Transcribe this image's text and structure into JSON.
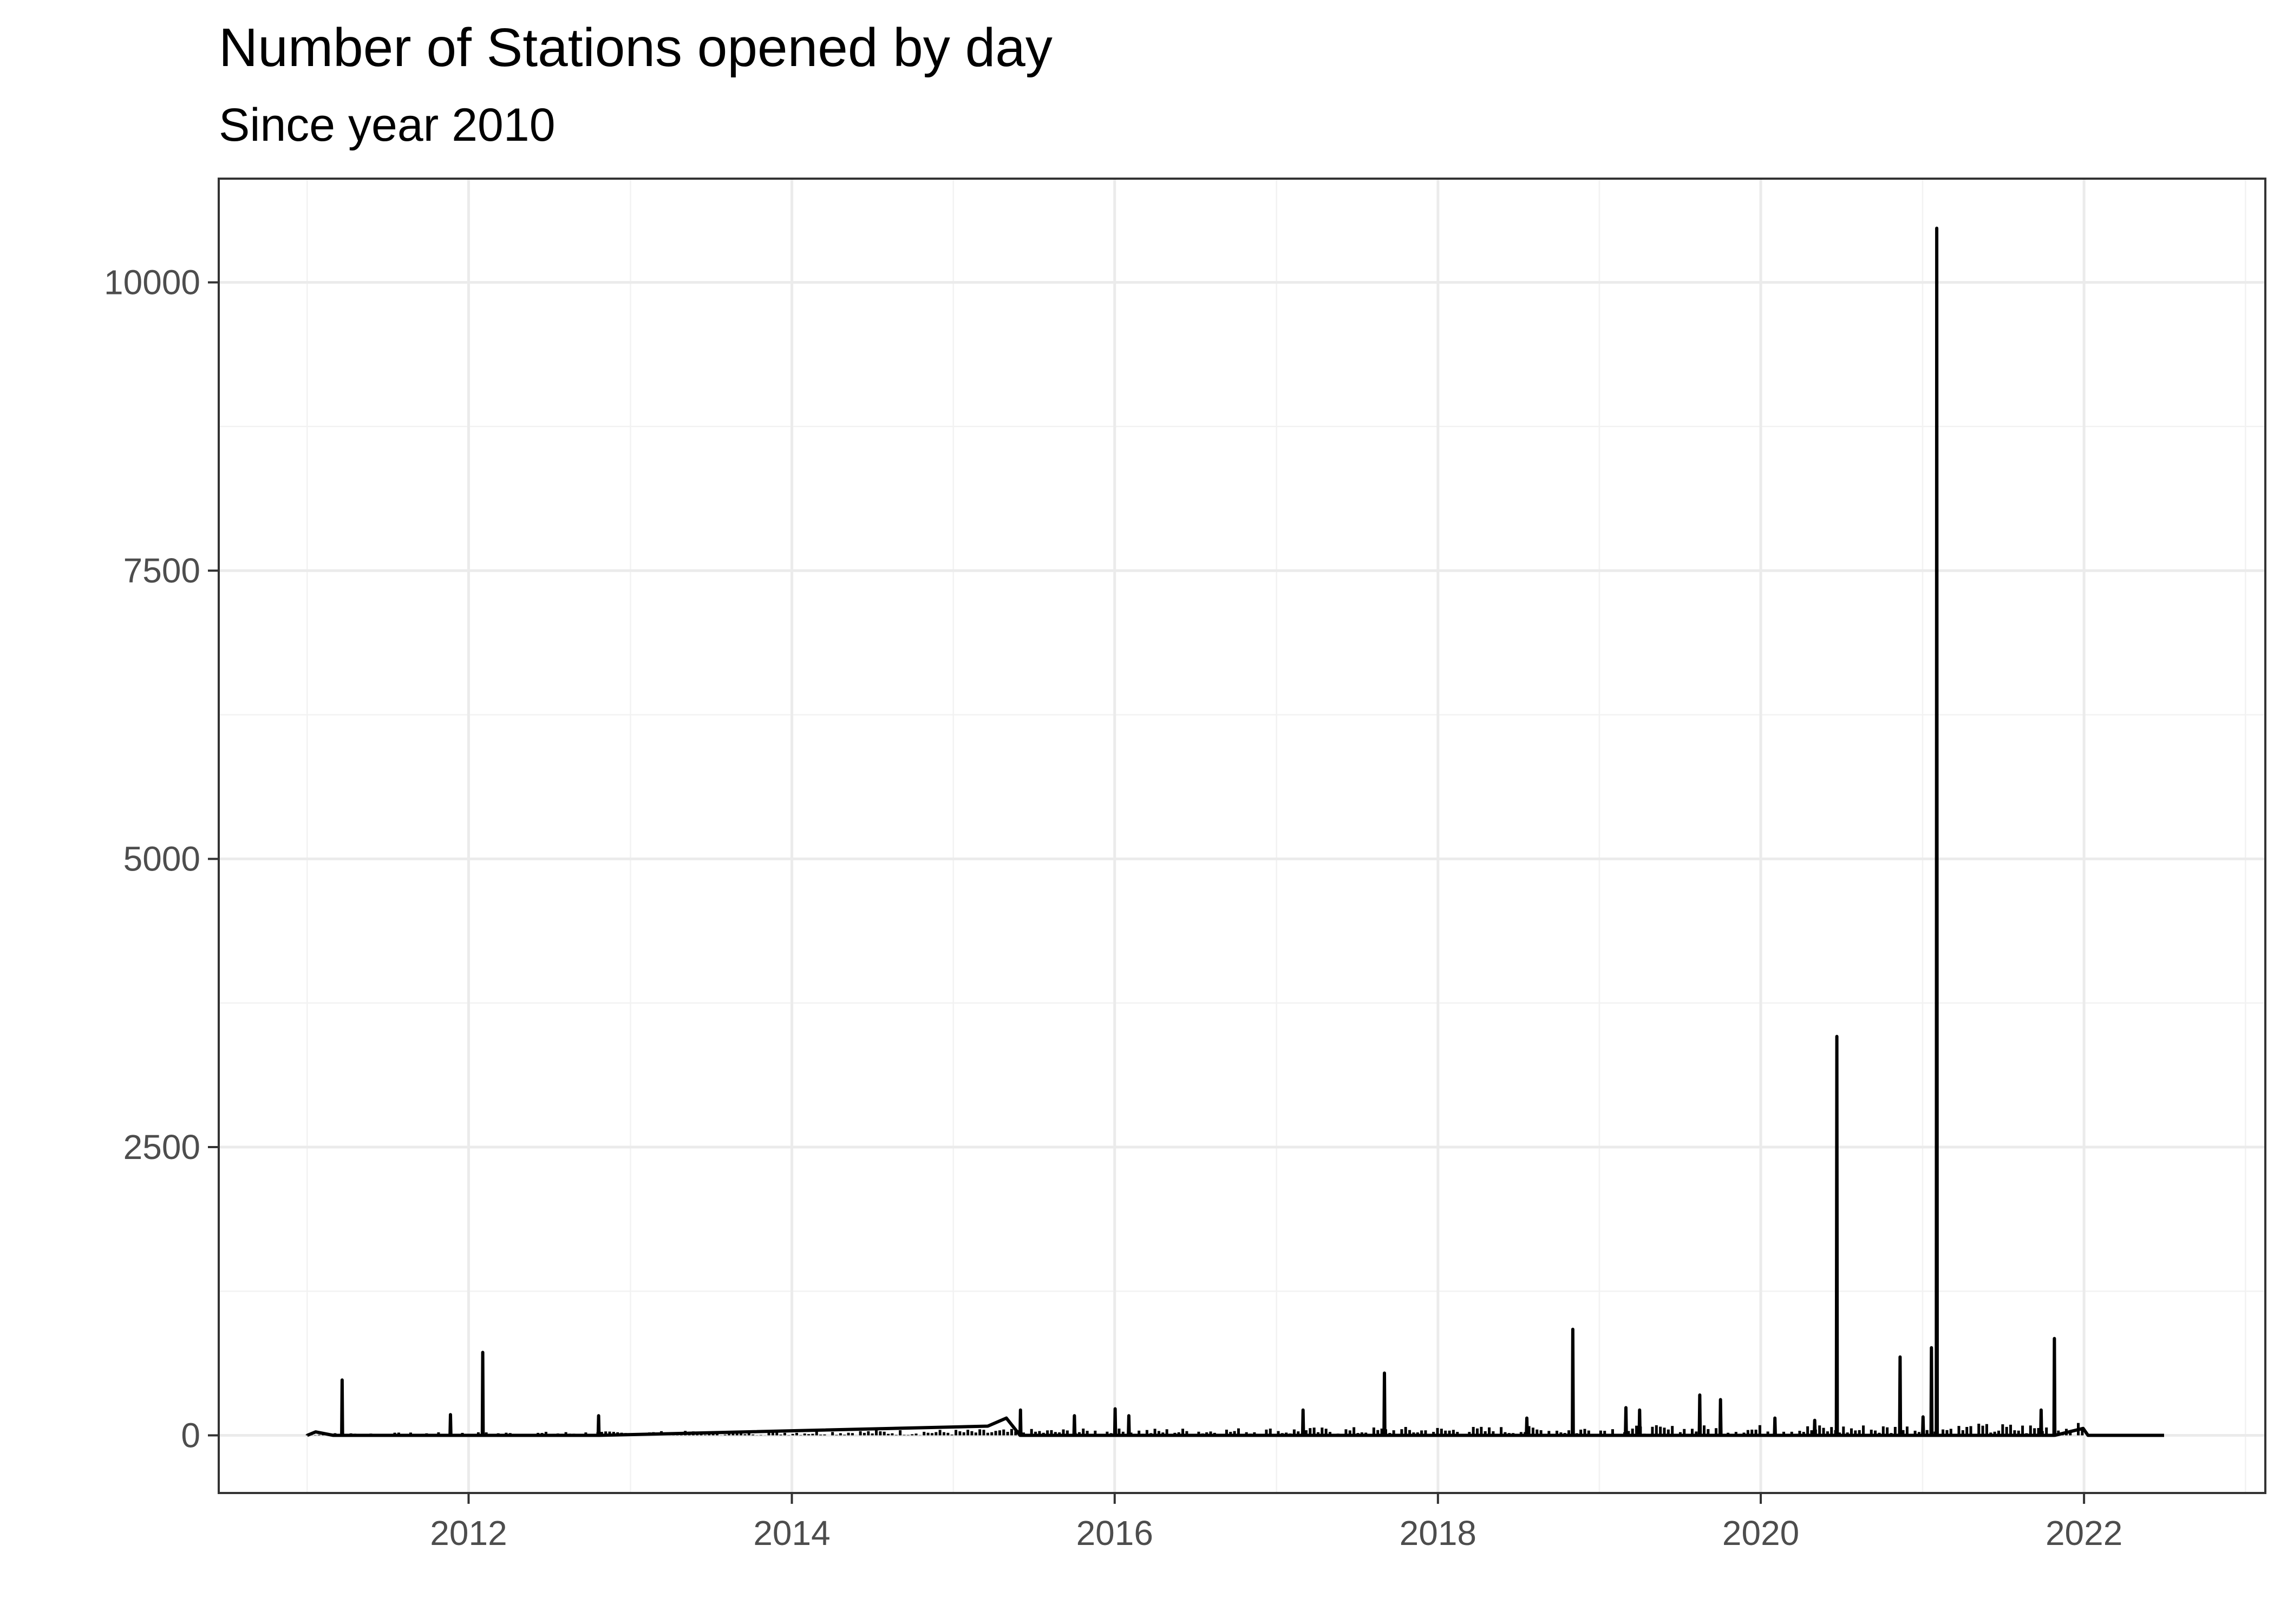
{
  "chart_data": {
    "type": "line",
    "title": "Number of Stations opened by day",
    "subtitle": "Since year 2010",
    "xlabel": "",
    "ylabel": "",
    "x_type": "date",
    "xlim": [
      "2010-06-15",
      "2023-02-15"
    ],
    "ylim": [
      -500,
      10900
    ],
    "x_ticks": [
      "2012",
      "2014",
      "2016",
      "2018",
      "2020",
      "2022"
    ],
    "y_ticks": [
      0,
      2500,
      5000,
      7500,
      10000
    ],
    "grid": true,
    "legend": "none",
    "series_color": "#000000",
    "x_range": [
      "2011-01-01",
      "2022-07-01"
    ],
    "x": [
      "2011-01-01",
      "2011-01-20",
      "2011-03-01",
      "2011-03-20",
      "2011-03-21",
      "2011-03-22",
      "2011-11-20",
      "2011-11-21",
      "2011-11-22",
      "2012-02-01",
      "2012-02-02",
      "2012-02-03",
      "2012-10-20",
      "2012-10-21",
      "2012-10-22",
      "2015-03-20",
      "2015-05-01",
      "2015-06-01",
      "2015-06-02",
      "2015-06-03",
      "2015-10-01",
      "2015-10-02",
      "2015-10-03",
      "2016-01-01",
      "2016-01-02",
      "2016-01-03",
      "2016-02-01",
      "2016-02-02",
      "2016-02-03",
      "2017-03-01",
      "2017-03-02",
      "2017-03-03",
      "2017-09-01",
      "2017-09-02",
      "2017-09-03",
      "2018-07-20",
      "2018-07-21",
      "2018-07-22",
      "2018-11-01",
      "2018-11-02",
      "2018-11-03",
      "2019-03-01",
      "2019-03-02",
      "2019-03-03",
      "2019-04-01",
      "2019-04-02",
      "2019-04-03",
      "2019-08-15",
      "2019-08-16",
      "2019-08-17",
      "2019-10-01",
      "2019-10-02",
      "2019-10-03",
      "2020-02-01",
      "2020-02-02",
      "2020-02-03",
      "2020-05-01",
      "2020-05-02",
      "2020-05-03",
      "2020-06-20",
      "2020-06-21",
      "2020-06-22",
      "2020-11-10",
      "2020-11-11",
      "2020-11-12",
      "2021-01-01",
      "2021-01-02",
      "2021-01-03",
      "2021-01-20",
      "2021-01-21",
      "2021-01-22",
      "2021-02-01",
      "2021-02-02",
      "2021-02-03",
      "2021-09-25",
      "2021-09-26",
      "2021-09-27",
      "2021-10-25",
      "2021-10-26",
      "2021-10-27",
      "2021-12-30",
      "2022-01-10",
      "2022-07-01"
    ],
    "values": [
      0,
      30,
      0,
      0,
      480,
      0,
      0,
      180,
      0,
      0,
      720,
      0,
      0,
      170,
      0,
      80,
      150,
      0,
      220,
      0,
      0,
      170,
      0,
      0,
      230,
      0,
      0,
      170,
      0,
      0,
      220,
      0,
      0,
      540,
      0,
      0,
      150,
      0,
      0,
      920,
      0,
      0,
      240,
      0,
      0,
      220,
      0,
      0,
      350,
      0,
      0,
      310,
      0,
      0,
      150,
      0,
      0,
      130,
      0,
      0,
      3460,
      0,
      0,
      680,
      0,
      0,
      160,
      0,
      0,
      760,
      0,
      0,
      10470,
      0,
      0,
      220,
      0,
      0,
      840,
      0,
      60,
      0,
      0
    ]
  }
}
